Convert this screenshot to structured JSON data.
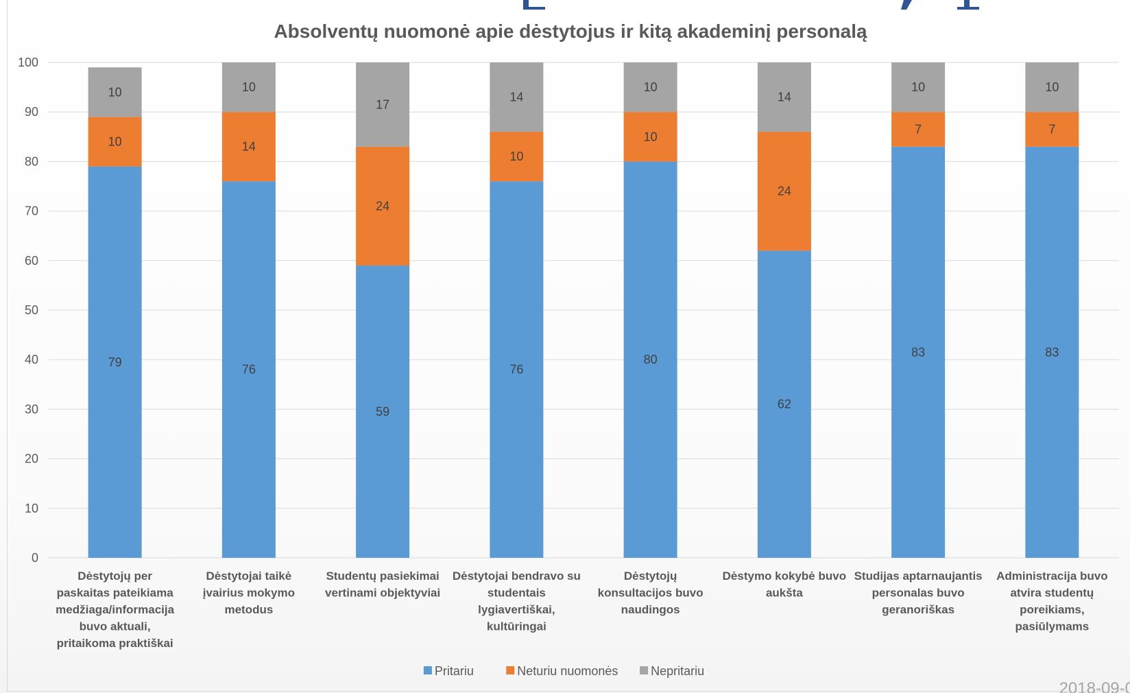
{
  "colors": {
    "pritariu": "#5b9bd5",
    "neturiu": "#ed7d31",
    "nepritariu": "#a5a5a5",
    "text": "#595959",
    "grid": "#d9d9d9",
    "accent": "#2f5597"
  },
  "footer": {
    "date": "2018-09-0"
  },
  "chart_data": {
    "type": "bar",
    "stacked": true,
    "title": "Absolventų nuomonė apie dėstytojus ir kitą akademinį personalą",
    "xlabel": "",
    "ylabel": "",
    "ylim": [
      0,
      100
    ],
    "yticks": [
      0,
      10,
      20,
      30,
      40,
      50,
      60,
      70,
      80,
      90,
      100
    ],
    "grid": true,
    "legend_position": "bottom",
    "categories": [
      [
        "Dėstytojų per",
        "paskaitas pateikiama",
        "medžiaga/informacija",
        "buvo aktuali,",
        "pritaikoma praktiškai"
      ],
      [
        "Dėstytojai taikė",
        "įvairius mokymo",
        "metodus"
      ],
      [
        "Studentų pasiekimai",
        "vertinami objektyviai"
      ],
      [
        "Dėstytojai bendravo su",
        "studentais",
        "lygiavertiškai,",
        "kultūringai"
      ],
      [
        "Dėstytojų",
        "konsultacijos buvo",
        "naudingos"
      ],
      [
        "Dėstymo kokybė buvo",
        "aukšta"
      ],
      [
        "Studijas aptarnaujantis",
        "personalas buvo",
        "geranoriškas"
      ],
      [
        "Administracija buvo",
        "atvira studentų",
        "poreikiams,",
        "pasiūlymams"
      ]
    ],
    "series": [
      {
        "name": "Pritariu",
        "color": "#5b9bd5",
        "values": [
          79,
          76,
          59,
          76,
          80,
          62,
          83,
          83
        ]
      },
      {
        "name": "Neturiu nuomonės",
        "color": "#ed7d31",
        "values": [
          10,
          14,
          24,
          10,
          10,
          24,
          7,
          7
        ]
      },
      {
        "name": "Nepritariu",
        "color": "#a5a5a5",
        "values": [
          10,
          10,
          17,
          14,
          10,
          14,
          10,
          10
        ]
      }
    ]
  }
}
